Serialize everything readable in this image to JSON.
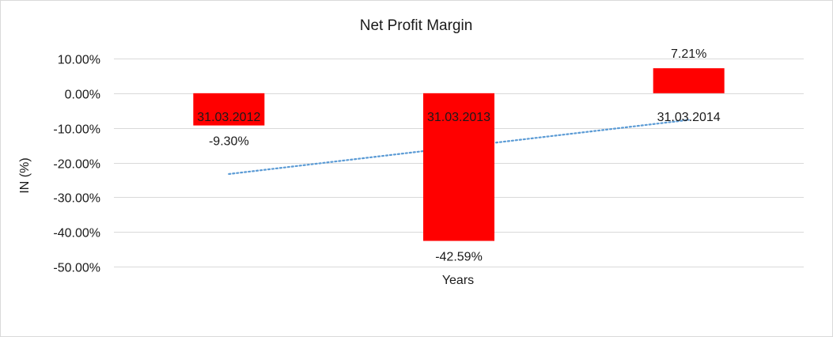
{
  "chart_data": {
    "type": "bar",
    "title": "Net Profit Margin",
    "xlabel": "Years",
    "ylabel": "IN (%)",
    "categories": [
      "31.03.2012",
      "31.03.2013",
      "31.03.2014"
    ],
    "values": [
      -9.3,
      -42.59,
      7.21
    ],
    "data_labels": [
      "-9.30%",
      "-42.59%",
      "7.21%"
    ],
    "ylim": [
      -50,
      10
    ],
    "yticks": [
      10,
      0,
      -10,
      -20,
      -30,
      -40,
      -50
    ],
    "ytick_labels": [
      "10.00%",
      "0.00%",
      "-10.00%",
      "-20.00%",
      "-30.00%",
      "-40.00%",
      "-50.00%"
    ],
    "grid": true,
    "legend": "none",
    "trendline": {
      "type": "linear",
      "style": "dotted",
      "color": "#5b9bd5",
      "start_value": -23.3,
      "end_value": -7.7
    },
    "colors": {
      "bar": "#ff0000",
      "grid": "#d9d9d9",
      "text": "#1a1a1a"
    }
  }
}
